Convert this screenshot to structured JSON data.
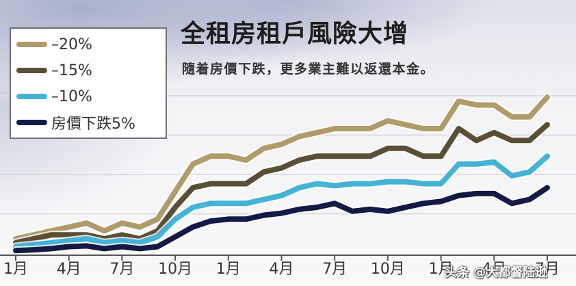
{
  "header": {
    "title": "全租房租戶風險大增",
    "subtitle": "隨着房價下跌，更多業主難以返還本金。"
  },
  "legend": {
    "items": [
      {
        "label": "–20%",
        "color": "#b09c6b"
      },
      {
        "label": "–15%",
        "color": "#5b4e36"
      },
      {
        "label": "–10%",
        "color": "#45b3d6"
      },
      {
        "label": "房價下跌5%",
        "color": "#141a45"
      }
    ]
  },
  "x_axis": {
    "labels": [
      "1月",
      "4月",
      "7月",
      "10月",
      "1月",
      "4月",
      "7月",
      "10月",
      "1月",
      "4月",
      "7月"
    ]
  },
  "watermark": "头条 @大都督陆逊",
  "chart_data": {
    "type": "line",
    "title": "全租房租戶風險大增",
    "subtitle": "隨着房價下跌，更多業主難以返還本金。",
    "xlabel": "",
    "ylabel": "",
    "x_tick_labels": [
      "1月",
      "4月",
      "7月",
      "10月",
      "1月",
      "4月",
      "7月",
      "10月",
      "1月",
      "4月",
      "7月"
    ],
    "x": [
      0,
      1,
      2,
      3,
      4,
      5,
      6,
      7,
      8,
      9,
      10,
      11,
      12,
      13,
      14,
      15,
      16,
      17,
      18,
      19,
      20,
      21,
      22,
      23,
      24,
      25,
      26,
      27,
      28,
      29,
      30
    ],
    "grid": true,
    "legend_position": "upper left",
    "y_units": "relative index (gridline = 1 unit, no numeric y-axis labels shown)",
    "series": [
      {
        "name": "–20%",
        "color": "#b09c6b",
        "values": [
          0.4,
          0.5,
          0.6,
          0.7,
          0.8,
          0.6,
          0.8,
          0.7,
          0.9,
          1.6,
          2.3,
          2.5,
          2.5,
          2.4,
          2.7,
          2.8,
          3.0,
          3.1,
          3.2,
          3.2,
          3.2,
          3.4,
          3.3,
          3.2,
          3.2,
          3.9,
          3.8,
          3.8,
          3.5,
          3.5,
          4.0
        ]
      },
      {
        "name": "–15%",
        "color": "#5b4e36",
        "values": [
          0.3,
          0.4,
          0.5,
          0.5,
          0.5,
          0.4,
          0.5,
          0.4,
          0.6,
          1.2,
          1.7,
          1.8,
          1.8,
          1.8,
          2.1,
          2.2,
          2.4,
          2.5,
          2.5,
          2.5,
          2.5,
          2.7,
          2.7,
          2.5,
          2.5,
          3.2,
          2.9,
          3.1,
          2.9,
          2.9,
          3.3
        ]
      },
      {
        "name": "–10%",
        "color": "#45b3d6",
        "values": [
          0.2,
          0.25,
          0.3,
          0.35,
          0.4,
          0.3,
          0.35,
          0.3,
          0.45,
          0.9,
          1.2,
          1.3,
          1.3,
          1.3,
          1.4,
          1.5,
          1.7,
          1.8,
          1.75,
          1.8,
          1.8,
          1.85,
          1.85,
          1.8,
          1.8,
          2.3,
          2.3,
          2.35,
          2.0,
          2.1,
          2.5
        ]
      },
      {
        "name": "房價下跌5%",
        "color": "#141a45",
        "values": [
          0.1,
          0.12,
          0.15,
          0.2,
          0.22,
          0.15,
          0.2,
          0.15,
          0.2,
          0.45,
          0.7,
          0.85,
          0.9,
          0.9,
          1.0,
          1.05,
          1.15,
          1.2,
          1.3,
          1.1,
          1.15,
          1.1,
          1.2,
          1.3,
          1.35,
          1.5,
          1.55,
          1.55,
          1.3,
          1.4,
          1.7
        ]
      }
    ]
  }
}
